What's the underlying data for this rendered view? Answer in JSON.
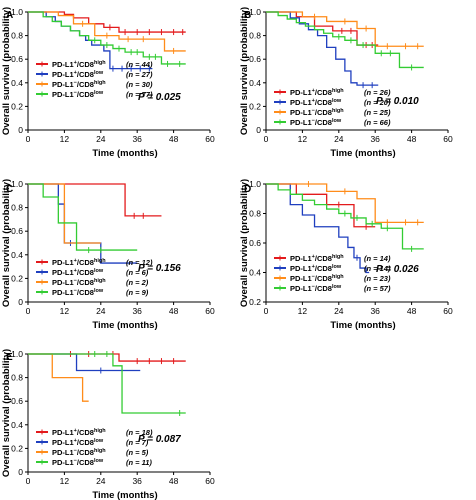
{
  "chart_data": [
    {
      "panel": "A",
      "type": "line",
      "step": true,
      "xlabel": "Time (months)",
      "ylabel": "Overall survival (probability)",
      "xlim": [
        0,
        60
      ],
      "ylim": [
        0,
        1.0
      ],
      "xticks": [
        0,
        12,
        24,
        36,
        48,
        60
      ],
      "yticks": [
        0,
        0.2,
        0.4,
        0.6,
        0.8,
        1.0
      ],
      "pvalue": "P = 0.025",
      "legend_position": "bottom-left",
      "series": [
        {
          "sup": "+",
          "cd8": "high",
          "n": "(n = 44)",
          "color": "#e31a1c",
          "x": [
            0,
            12,
            15,
            20,
            25,
            30,
            52
          ],
          "y": [
            1.0,
            0.98,
            0.95,
            0.9,
            0.87,
            0.83,
            0.83
          ],
          "censor": [
            27,
            32,
            36,
            40,
            44,
            48,
            51
          ]
        },
        {
          "sup": "+",
          "cd8": "low",
          "n": "(n = 27)",
          "color": "#1f3fbf",
          "x": [
            0,
            6,
            9,
            11,
            14,
            17,
            19,
            21,
            25,
            27,
            41
          ],
          "y": [
            1.0,
            0.96,
            0.92,
            0.88,
            0.84,
            0.8,
            0.76,
            0.72,
            0.67,
            0.52,
            0.52
          ],
          "censor": [
            28,
            31,
            34,
            37,
            40
          ]
        },
        {
          "sup": "−",
          "cd8": "high",
          "n": "(n = 30)",
          "color": "#ff8c1a",
          "x": [
            0,
            10,
            15,
            22,
            30,
            45,
            52
          ],
          "y": [
            1.0,
            0.97,
            0.9,
            0.8,
            0.77,
            0.67,
            0.67
          ],
          "censor": [
            18,
            26,
            33,
            38,
            48
          ]
        },
        {
          "sup": "−",
          "cd8": "low",
          "n": "(n = 77)",
          "color": "#33cc33",
          "x": [
            0,
            5,
            8,
            11,
            14,
            17,
            20,
            24,
            28,
            32,
            38,
            44,
            52
          ],
          "y": [
            1.0,
            0.96,
            0.92,
            0.88,
            0.84,
            0.8,
            0.76,
            0.72,
            0.69,
            0.66,
            0.62,
            0.56,
            0.56
          ],
          "censor": [
            22,
            26,
            30,
            34,
            36,
            40,
            42,
            46,
            50
          ]
        }
      ]
    },
    {
      "panel": "B",
      "type": "line",
      "step": true,
      "xlabel": "Time (months)",
      "ylabel": "Overall survival (probability)",
      "xlim": [
        0,
        60
      ],
      "ylim": [
        0,
        1.0
      ],
      "xticks": [
        0,
        12,
        24,
        36,
        48,
        60
      ],
      "yticks": [
        0,
        0.2,
        0.4,
        0.6,
        0.8,
        1.0
      ],
      "pvalue": "P = 0.010",
      "legend_position": "bottom-left",
      "series": [
        {
          "sup": "+",
          "cd8": "high",
          "n": "(n = 26)",
          "color": "#e31a1c",
          "x": [
            0,
            10,
            16,
            22,
            30,
            37
          ],
          "y": [
            1.0,
            0.96,
            0.88,
            0.84,
            0.72,
            0.72
          ],
          "censor": [
            25,
            28,
            33,
            35
          ]
        },
        {
          "sup": "+",
          "cd8": "low",
          "n": "(n = 20)",
          "color": "#1f3fbf",
          "x": [
            0,
            8,
            11,
            14,
            17,
            20,
            23,
            26,
            28,
            30,
            37
          ],
          "y": [
            1.0,
            0.95,
            0.9,
            0.85,
            0.8,
            0.7,
            0.6,
            0.5,
            0.4,
            0.38,
            0.38
          ],
          "censor": [
            32,
            35
          ]
        },
        {
          "sup": "−",
          "cd8": "high",
          "n": "(n = 25)",
          "color": "#ff8c1a",
          "x": [
            0,
            12,
            20,
            30,
            36,
            52
          ],
          "y": [
            1.0,
            0.96,
            0.92,
            0.86,
            0.71,
            0.71
          ],
          "censor": [
            16,
            26,
            33,
            40,
            46,
            50
          ]
        },
        {
          "sup": "−",
          "cd8": "low",
          "n": "(n = 66)",
          "color": "#33cc33",
          "x": [
            0,
            4,
            7,
            10,
            13,
            16,
            19,
            22,
            26,
            30,
            36,
            44,
            52
          ],
          "y": [
            1.0,
            0.97,
            0.94,
            0.91,
            0.88,
            0.85,
            0.82,
            0.79,
            0.76,
            0.72,
            0.65,
            0.53,
            0.53
          ],
          "censor": [
            24,
            28,
            32,
            38,
            41,
            48
          ]
        }
      ]
    },
    {
      "panel": "C",
      "type": "line",
      "step": true,
      "xlabel": "Time (months)",
      "ylabel": "Overall survival (probability)",
      "xlim": [
        0,
        60
      ],
      "ylim": [
        0,
        1.0
      ],
      "xticks": [
        0,
        12,
        24,
        36,
        48,
        60
      ],
      "yticks": [
        0,
        0.2,
        0.4,
        0.6,
        0.8,
        1.0
      ],
      "pvalue": "P = 0.156",
      "legend_position": "bottom-left",
      "series": [
        {
          "sup": "+",
          "cd8": "high",
          "n": "(n = 12)",
          "color": "#e31a1c",
          "x": [
            0,
            32,
            44
          ],
          "y": [
            1.0,
            0.73,
            0.73
          ],
          "censor": [
            35,
            38
          ]
        },
        {
          "sup": "+",
          "cd8": "low",
          "n": "(n = 6)",
          "color": "#1f3fbf",
          "x": [
            0,
            10,
            12,
            24,
            36
          ],
          "y": [
            1.0,
            0.83,
            0.5,
            0.33,
            0.33
          ],
          "censor": [
            14
          ]
        },
        {
          "sup": "−",
          "cd8": "high",
          "n": "(n = 2)",
          "color": "#ff8c1a",
          "x": [
            0,
            12,
            24
          ],
          "y": [
            1.0,
            0.5,
            0.5
          ],
          "censor": []
        },
        {
          "sup": "−",
          "cd8": "low",
          "n": "(n = 9)",
          "color": "#33cc33",
          "x": [
            0,
            5,
            10,
            16,
            36
          ],
          "y": [
            1.0,
            0.89,
            0.67,
            0.44,
            0.44
          ],
          "censor": [
            20,
            24
          ]
        }
      ]
    },
    {
      "panel": "D",
      "type": "line",
      "step": true,
      "xlabel": "Time (months)",
      "ylabel": "Overall survival (probability)",
      "xlim": [
        0,
        60
      ],
      "ylim": [
        0.2,
        1.0
      ],
      "xticks": [
        0,
        12,
        24,
        36,
        48,
        60
      ],
      "yticks": [
        0.2,
        0.4,
        0.6,
        0.8,
        1.0
      ],
      "pvalue": "P = 0.026",
      "legend_position": "bottom-left",
      "series": [
        {
          "sup": "+",
          "cd8": "high",
          "n": "(n = 14)",
          "color": "#e31a1c",
          "x": [
            0,
            10,
            20,
            29,
            36
          ],
          "y": [
            1.0,
            0.93,
            0.86,
            0.71,
            0.71
          ],
          "censor": [
            24,
            33
          ]
        },
        {
          "sup": "+",
          "cd8": "low",
          "n": "(n = 14)",
          "color": "#1f3fbf",
          "x": [
            0,
            8,
            12,
            16,
            24,
            27,
            29,
            31,
            33,
            34
          ],
          "y": [
            1.0,
            0.86,
            0.79,
            0.71,
            0.64,
            0.57,
            0.5,
            0.43,
            0.4,
            0.4
          ],
          "censor": [
            30
          ]
        },
        {
          "sup": "−",
          "cd8": "high",
          "n": "(n = 23)",
          "color": "#ff8c1a",
          "x": [
            0,
            20,
            30,
            36,
            52
          ],
          "y": [
            1.0,
            0.95,
            0.9,
            0.74,
            0.74
          ],
          "censor": [
            14,
            26,
            40,
            46,
            50
          ]
        },
        {
          "sup": "−",
          "cd8": "low",
          "n": "(n = 57)",
          "color": "#33cc33",
          "x": [
            0,
            4,
            8,
            12,
            16,
            20,
            24,
            28,
            33,
            38,
            45,
            52
          ],
          "y": [
            1.0,
            0.96,
            0.93,
            0.89,
            0.86,
            0.83,
            0.8,
            0.77,
            0.73,
            0.7,
            0.56,
            0.56
          ],
          "censor": [
            26,
            30,
            35,
            40,
            48
          ]
        }
      ]
    },
    {
      "panel": "E",
      "type": "line",
      "step": true,
      "xlabel": "Time (months)",
      "ylabel": "Overall survival (probability)",
      "xlim": [
        0,
        60
      ],
      "ylim": [
        0,
        1.0
      ],
      "xticks": [
        0,
        12,
        24,
        36,
        48,
        60
      ],
      "yticks": [
        0,
        0.2,
        0.4,
        0.6,
        0.8,
        1.0
      ],
      "pvalue": "P = 0.087",
      "legend_position": "bottom-left",
      "series": [
        {
          "sup": "+",
          "cd8": "high",
          "n": "(n = 18)",
          "color": "#e31a1c",
          "x": [
            0,
            30,
            52
          ],
          "y": [
            1.0,
            0.94,
            0.94
          ],
          "censor": [
            14,
            20,
            28,
            36,
            40,
            44,
            48
          ]
        },
        {
          "sup": "+",
          "cd8": "low",
          "n": "(n = 7)",
          "color": "#1f3fbf",
          "x": [
            0,
            16,
            37
          ],
          "y": [
            1.0,
            0.86,
            0.86
          ],
          "censor": [
            24
          ]
        },
        {
          "sup": "−",
          "cd8": "high",
          "n": "(n = 5)",
          "color": "#ff8c1a",
          "x": [
            0,
            8,
            18,
            20
          ],
          "y": [
            1.0,
            0.8,
            0.6,
            0.6
          ],
          "censor": []
        },
        {
          "sup": "−",
          "cd8": "low",
          "n": "(n = 11)",
          "color": "#33cc33",
          "x": [
            0,
            28,
            31,
            52
          ],
          "y": [
            1.0,
            0.9,
            0.5,
            0.5
          ],
          "censor": [
            22,
            26,
            50
          ]
        }
      ]
    }
  ]
}
